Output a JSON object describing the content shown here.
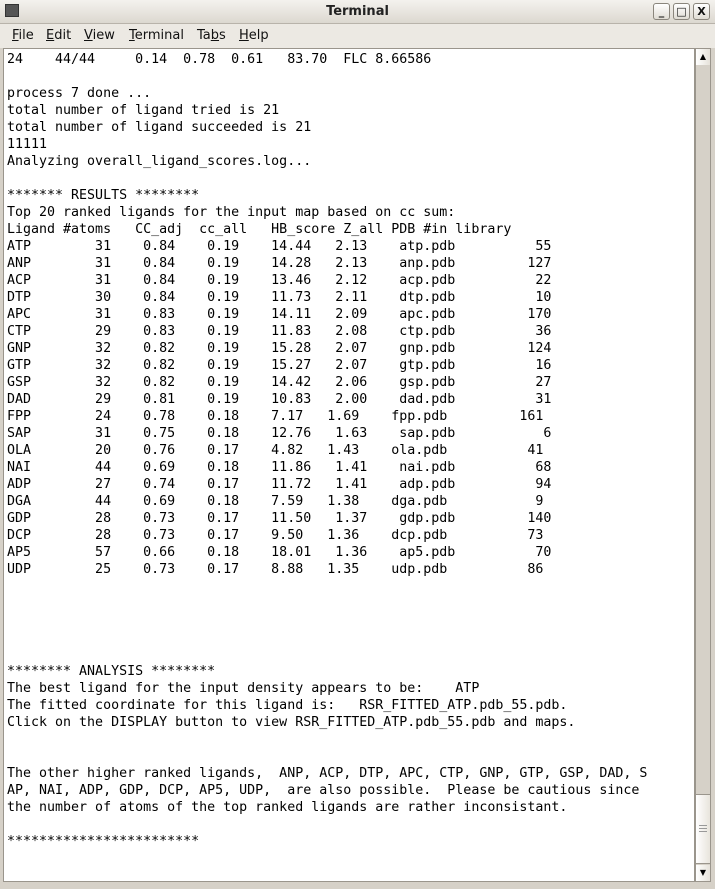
{
  "window": {
    "title": "Terminal",
    "icons": {
      "app": "terminal-icon",
      "minimize": "minimize-icon",
      "maximize": "maximize-icon",
      "close": "close-icon"
    }
  },
  "menu": [
    {
      "pre": "",
      "u": "F",
      "post": "ile"
    },
    {
      "pre": "",
      "u": "E",
      "post": "dit"
    },
    {
      "pre": "",
      "u": "V",
      "post": "iew"
    },
    {
      "pre": "",
      "u": "T",
      "post": "erminal"
    },
    {
      "pre": "Ta",
      "u": "b",
      "post": "s"
    },
    {
      "pre": "",
      "u": "H",
      "post": "elp"
    }
  ],
  "terminal": {
    "lines": [
      "24    44/44     0.14  0.78  0.61   83.70  FLC 8.66586",
      "",
      "process 7 done ...",
      "total number of ligand tried is 21",
      "total number of ligand succeeded is 21",
      "11111",
      "Analyzing overall_ligand_scores.log...",
      "",
      "******* RESULTS ********",
      "Top 20 ranked ligands for the input map based on cc sum:",
      "Ligand #atoms   CC_adj  cc_all   HB_score Z_all PDB #in library",
      "ATP        31    0.84    0.19    14.44   2.13    atp.pdb          55",
      "ANP        31    0.84    0.19    14.28   2.13    anp.pdb         127",
      "ACP        31    0.84    0.19    13.46   2.12    acp.pdb          22",
      "DTP        30    0.84    0.19    11.73   2.11    dtp.pdb          10",
      "APC        31    0.83    0.19    14.11   2.09    apc.pdb         170",
      "CTP        29    0.83    0.19    11.83   2.08    ctp.pdb          36",
      "GNP        32    0.82    0.19    15.28   2.07    gnp.pdb         124",
      "GTP        32    0.82    0.19    15.27   2.07    gtp.pdb          16",
      "GSP        32    0.82    0.19    14.42   2.06    gsp.pdb          27",
      "DAD        29    0.81    0.19    10.83   2.00    dad.pdb          31",
      "FPP        24    0.78    0.18    7.17   1.69    fpp.pdb         161",
      "SAP        31    0.75    0.18    12.76   1.63    sap.pdb           6",
      "OLA        20    0.76    0.17    4.82   1.43    ola.pdb          41",
      "NAI        44    0.69    0.18    11.86   1.41    nai.pdb          68",
      "ADP        27    0.74    0.17    11.72   1.41    adp.pdb          94",
      "DGA        44    0.69    0.18    7.59   1.38    dga.pdb           9",
      "GDP        28    0.73    0.17    11.50   1.37    gdp.pdb         140",
      "DCP        28    0.73    0.17    9.50   1.36    dcp.pdb          73",
      "AP5        57    0.66    0.18    18.01   1.36    ap5.pdb          70",
      "UDP        25    0.73    0.17    8.88   1.35    udp.pdb          86",
      "",
      "",
      "",
      "",
      "",
      "******** ANALYSIS ********",
      "The best ligand for the input density appears to be:    ATP",
      "The fitted coordinate for this ligand is:   RSR_FITTED_ATP.pdb_55.pdb.",
      "Click on the DISPLAY button to view RSR_FITTED_ATP.pdb_55.pdb and maps.",
      "",
      "",
      "The other higher ranked ligands,  ANP, ACP, DTP, APC, CTP, GNP, GTP, GSP, DAD, S",
      "AP, NAI, ADP, GDP, DCP, AP5, UDP,  are also possible.  Please be cautious since",
      "the number of atoms of the top ranked ligands are rather inconsistant.",
      "",
      "************************"
    ]
  },
  "scrollbar": {
    "up_icon": "arrow-up-icon",
    "down_icon": "arrow-down-icon",
    "position_percent": 100
  }
}
